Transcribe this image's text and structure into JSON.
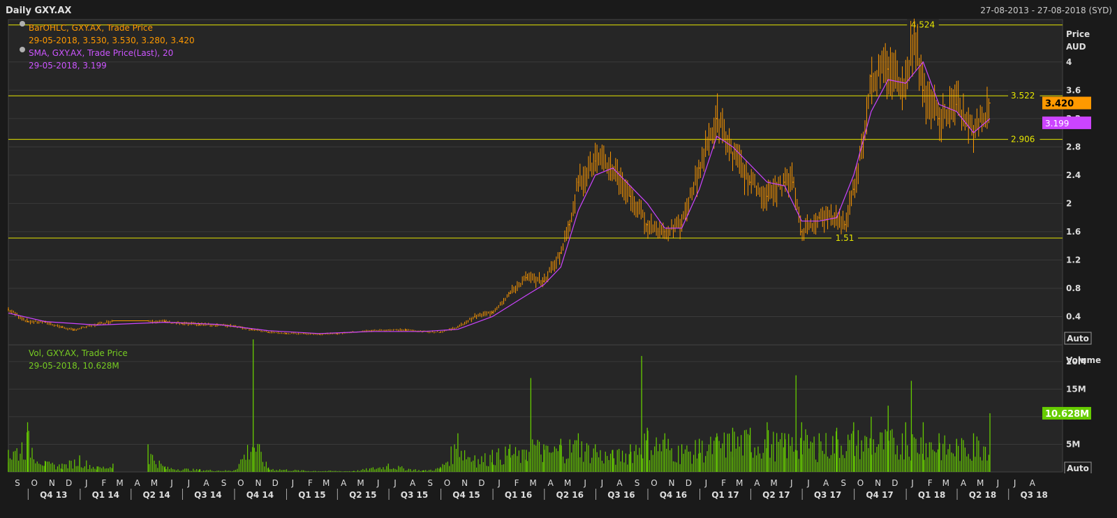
{
  "header": {
    "title": "Daily GXY.AX",
    "date_range": "27-08-2013 - 27-08-2018 (SYD)"
  },
  "colors": {
    "background": "#1a1a1a",
    "plot_bg": "#262626",
    "grid": "#3a3a3a",
    "price_bar": "#ff9900",
    "sma": "#cc44ff",
    "volume": "#66cc00",
    "level_line": "#e6e600",
    "text": "#dddddd"
  },
  "legend": {
    "ohlc_title": "BarOHLC, GXY.AX, Trade Price",
    "ohlc_values": "29-05-2018, 3.530, 3.530, 3.280, 3.420",
    "sma_title": "SMA, GXY.AX, Trade Price(Last),  20",
    "sma_values": "29-05-2018, 3.199",
    "vol_title": "Vol, GXY.AX, Trade Price",
    "vol_values": "29-05-2018, 10.628M"
  },
  "badges": {
    "auto_upper": "Auto",
    "auto_lower": "Auto"
  },
  "chart_data": [
    {
      "type": "line",
      "ylabel": "Price",
      "unit": "AUD",
      "ylim": [
        0.0,
        4.6
      ],
      "y_ticks": [
        "0.4",
        "0.8",
        "1.2",
        "1.6",
        "2",
        "2.4",
        "2.8",
        "3.2",
        "3.6",
        "4"
      ],
      "y_tick_values": [
        0.4,
        0.8,
        1.2,
        1.6,
        2.0,
        2.4,
        2.8,
        3.2,
        3.6,
        4.0
      ],
      "grid": true,
      "last_price": {
        "label": "3.420",
        "value": 3.42
      },
      "last_sma": {
        "label": "3.199",
        "value": 3.199
      },
      "levels": [
        {
          "label": "4.524",
          "value": 4.524
        },
        {
          "label": "3.522",
          "value": 3.522
        },
        {
          "label": "2.906",
          "value": 2.906
        },
        {
          "label": "1.51",
          "value": 1.51
        }
      ],
      "series": [
        {
          "name": "BarOHLC",
          "x": [
            "2013-08-27",
            "2013-09-30",
            "2013-10-31",
            "2013-11-30",
            "2013-12-20",
            "2014-01-31",
            "2014-02-28",
            "2014-05-01",
            "2014-05-31",
            "2014-06-30",
            "2014-07-31",
            "2014-08-31",
            "2014-09-30",
            "2014-10-31",
            "2014-11-30",
            "2014-12-31",
            "2015-01-31",
            "2015-02-28",
            "2015-03-31",
            "2015-04-30",
            "2015-05-31",
            "2015-06-30",
            "2015-07-31",
            "2015-08-31",
            "2015-09-30",
            "2015-10-31",
            "2015-11-30",
            "2015-12-31",
            "2016-01-31",
            "2016-02-29",
            "2016-03-31",
            "2016-04-30",
            "2016-05-15",
            "2016-05-31",
            "2016-06-30",
            "2016-07-31",
            "2016-08-31",
            "2016-09-30",
            "2016-10-31",
            "2016-11-30",
            "2016-12-31",
            "2017-01-31",
            "2017-02-28",
            "2017-03-31",
            "2017-04-30",
            "2017-05-31",
            "2017-06-15",
            "2017-06-30",
            "2017-07-31",
            "2017-08-31",
            "2017-09-15",
            "2017-09-30",
            "2017-10-15",
            "2017-10-31",
            "2017-11-30",
            "2017-12-31",
            "2018-01-15",
            "2018-01-31",
            "2018-02-28",
            "2018-03-31",
            "2018-04-30",
            "2018-05-29"
          ],
          "values": [
            0.5,
            0.33,
            0.32,
            0.25,
            0.21,
            0.29,
            0.34,
            0.34,
            0.33,
            0.3,
            0.29,
            0.28,
            0.27,
            0.22,
            0.18,
            0.16,
            0.16,
            0.15,
            0.16,
            0.18,
            0.2,
            0.21,
            0.21,
            0.19,
            0.18,
            0.25,
            0.4,
            0.46,
            0.73,
            0.95,
            0.9,
            1.3,
            1.7,
            2.3,
            2.6,
            2.5,
            2.1,
            1.7,
            1.6,
            1.7,
            2.5,
            3.2,
            2.7,
            2.3,
            2.1,
            2.3,
            2.3,
            1.6,
            1.8,
            1.8,
            1.7,
            2.2,
            2.8,
            3.8,
            3.9,
            3.7,
            4.4,
            3.6,
            3.2,
            3.4,
            3.0,
            3.42
          ]
        },
        {
          "name": "SMA",
          "x": [
            "2013-08-27",
            "2013-10-31",
            "2014-01-31",
            "2014-05-31",
            "2014-08-31",
            "2014-11-30",
            "2015-02-28",
            "2015-05-31",
            "2015-08-31",
            "2015-10-31",
            "2015-12-31",
            "2016-02-29",
            "2016-03-31",
            "2016-04-30",
            "2016-05-31",
            "2016-06-30",
            "2016-07-31",
            "2016-09-30",
            "2016-10-31",
            "2016-11-30",
            "2016-12-31",
            "2017-01-31",
            "2017-02-28",
            "2017-04-30",
            "2017-05-31",
            "2017-06-30",
            "2017-07-31",
            "2017-08-31",
            "2017-09-30",
            "2017-10-31",
            "2017-11-30",
            "2017-12-31",
            "2018-01-31",
            "2018-02-28",
            "2018-03-31",
            "2018-04-30",
            "2018-05-29"
          ],
          "values": [
            0.45,
            0.33,
            0.28,
            0.32,
            0.29,
            0.2,
            0.16,
            0.19,
            0.19,
            0.22,
            0.4,
            0.7,
            0.85,
            1.1,
            1.9,
            2.4,
            2.5,
            2.0,
            1.65,
            1.65,
            2.2,
            2.95,
            2.8,
            2.3,
            2.25,
            1.75,
            1.75,
            1.8,
            2.4,
            3.3,
            3.75,
            3.7,
            4.0,
            3.4,
            3.3,
            3.0,
            3.199
          ]
        }
      ]
    },
    {
      "type": "bar",
      "ylabel": "Volume",
      "ylim": [
        0,
        22000000
      ],
      "y_ticks": [
        "5M",
        "10M",
        "15M",
        "20M"
      ],
      "y_tick_values": [
        5000000,
        10000000,
        15000000,
        20000000
      ],
      "last_volume": {
        "label": "10.628M",
        "value": 10628000
      },
      "series": [
        {
          "name": "Vol",
          "x": [
            "2013-08-27",
            "2013-09-30",
            "2013-10-31",
            "2013-11-30",
            "2013-12-31",
            "2014-01-31",
            "2014-02-28",
            "2014-05-01",
            "2014-05-31",
            "2014-07-31",
            "2014-09-30",
            "2014-11-03",
            "2014-11-30",
            "2015-01-31",
            "2015-04-30",
            "2015-06-30",
            "2015-08-31",
            "2015-09-30",
            "2015-10-31",
            "2015-11-30",
            "2015-12-31",
            "2016-01-31",
            "2016-02-29",
            "2016-03-08",
            "2016-03-31",
            "2016-04-30",
            "2016-05-31",
            "2016-06-30",
            "2016-07-31",
            "2016-08-31",
            "2016-09-20",
            "2016-09-30",
            "2016-10-31",
            "2016-11-30",
            "2016-12-31",
            "2017-01-31",
            "2017-02-28",
            "2017-03-31",
            "2017-04-30",
            "2017-05-31",
            "2017-06-20",
            "2017-06-30",
            "2017-07-31",
            "2017-08-31",
            "2017-09-30",
            "2017-10-31",
            "2017-11-30",
            "2017-12-31",
            "2018-01-10",
            "2018-01-31",
            "2018-02-28",
            "2018-03-31",
            "2018-04-30",
            "2018-05-29"
          ],
          "values": [
            4000000,
            9000000,
            2000000,
            1500000,
            3000000,
            1000000,
            1500000,
            5000000,
            1000000,
            500000,
            300000,
            24000000,
            800000,
            300000,
            200000,
            1500000,
            300000,
            900000,
            7000000,
            3000000,
            4000000,
            5000000,
            4000000,
            17000000,
            5000000,
            6000000,
            7000000,
            5000000,
            4000000,
            5000000,
            21000000,
            8000000,
            7000000,
            5000000,
            6000000,
            7000000,
            8000000,
            8000000,
            9000000,
            7000000,
            17500000,
            9000000,
            7000000,
            8000000,
            9000000,
            10000000,
            12000000,
            9000000,
            16500000,
            9000000,
            7000000,
            6000000,
            7000000,
            10628000
          ]
        }
      ]
    }
  ],
  "x_axis": {
    "months": [
      "S",
      "O",
      "N",
      "D",
      "J",
      "F",
      "M",
      "A",
      "M",
      "J",
      "J",
      "A",
      "S",
      "O",
      "N",
      "D",
      "J",
      "F",
      "M",
      "A",
      "M",
      "J",
      "J",
      "A",
      "S",
      "O",
      "N",
      "D",
      "J",
      "F",
      "M",
      "A",
      "M",
      "J",
      "J",
      "A",
      "S",
      "O",
      "N",
      "D",
      "J",
      "F",
      "M",
      "A",
      "M",
      "J",
      "J",
      "A",
      "S",
      "O",
      "N",
      "D",
      "J",
      "F",
      "M",
      "A",
      "M",
      "J",
      "J",
      "A"
    ],
    "quarters": [
      "Q4 13",
      "Q1 14",
      "Q2 14",
      "Q3 14",
      "Q4 14",
      "Q1 15",
      "Q2 15",
      "Q3 15",
      "Q4 15",
      "Q1 16",
      "Q2 16",
      "Q3 16",
      "Q4 16",
      "Q1 17",
      "Q2 17",
      "Q3 17",
      "Q4 17",
      "Q1 18",
      "Q2 18",
      "Q3 18"
    ]
  }
}
